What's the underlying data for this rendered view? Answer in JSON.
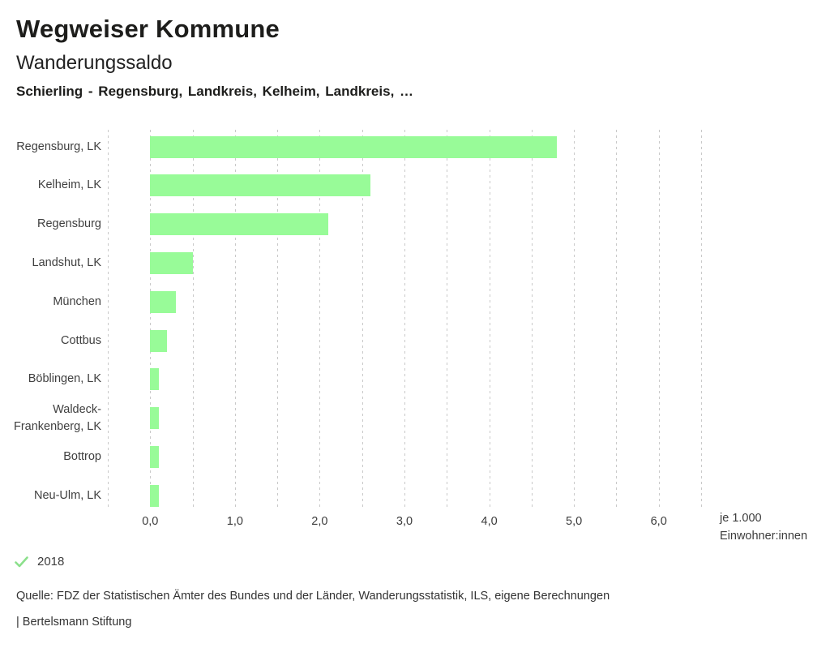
{
  "header": {
    "app_title": "Wegweiser Kommune",
    "chart_title": "Wanderungssaldo",
    "subtitle": "Schierling - Regensburg, Landkreis, Kelheim, Landkreis, …"
  },
  "chart_data": {
    "type": "bar",
    "orientation": "horizontal",
    "title": "Wanderungssaldo",
    "categories": [
      "Regensburg, LK",
      "Kelheim, LK",
      "Regensburg",
      "Landshut, LK",
      "München",
      "Cottbus",
      "Böblingen, LK",
      "Waldeck-Frankenberg, LK",
      "Bottrop",
      "Neu-Ulm, LK"
    ],
    "values": [
      4.8,
      2.6,
      2.1,
      0.5,
      0.3,
      0.2,
      0.1,
      0.1,
      0.1,
      0.1
    ],
    "series_year": "2018",
    "xlim": [
      -0.5,
      6.5
    ],
    "grid_step": 0.5,
    "x_ticks": [
      0,
      1,
      2,
      3,
      4,
      5,
      6
    ],
    "x_tick_labels": [
      "0,0",
      "1,0",
      "2,0",
      "3,0",
      "4,0",
      "5,0",
      "6,0"
    ],
    "xlabel_line1": "je 1.000",
    "xlabel_line2": "Einwohner:innen",
    "grid": true,
    "bar_color": "#98fb98",
    "grid_color": "#c9c9c9"
  },
  "legend": {
    "year": "2018",
    "check_icon": "checkmark",
    "check_color": "#8ce08c"
  },
  "footer": {
    "source": "Quelle: FDZ der Statistischen Ämter des Bundes und der Länder, Wanderungsstatistik, ILS, eigene Berechnungen",
    "branding": "| Bertelsmann Stiftung"
  }
}
